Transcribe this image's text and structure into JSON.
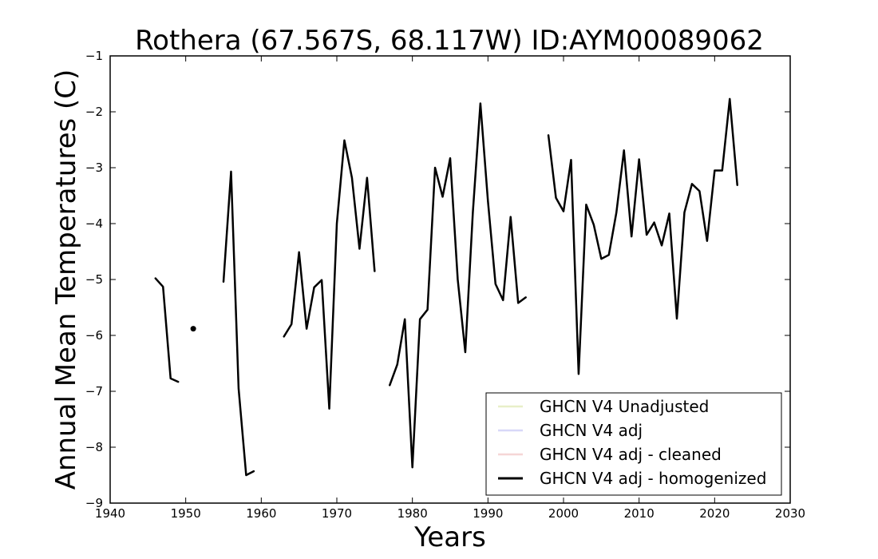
{
  "chart_data": {
    "type": "line",
    "title": "Rothera (67.567S, 68.117W) ID:AYM00089062",
    "xlabel": "Years",
    "ylabel": "Annual Mean Temperatures (C)",
    "xlim": [
      1940,
      2030
    ],
    "ylim": [
      -9,
      -1
    ],
    "xticks": [
      1940,
      1950,
      1960,
      1970,
      1980,
      1990,
      2000,
      2010,
      2020,
      2030
    ],
    "yticks": [
      -1,
      -2,
      -3,
      -4,
      -5,
      -6,
      -7,
      -8,
      -9
    ],
    "grid": false,
    "legend_position": "bottom-right",
    "series": [
      {
        "name": "GHCN V4 Unadjusted",
        "color": "#e8efc8",
        "line_style": "solid",
        "points": []
      },
      {
        "name": "GHCN V4 adj",
        "color": "#d8d8f8",
        "line_style": "solid",
        "points": []
      },
      {
        "name": "GHCN V4 adj - cleaned",
        "color": "#f6d6d6",
        "line_style": "solid",
        "points": []
      },
      {
        "name": "GHCN V4 adj - homogenized",
        "color": "#000000",
        "line_style": "solid",
        "points": [
          [
            1946,
            -4.98
          ],
          [
            1947,
            -5.13
          ],
          [
            1948,
            -6.77
          ],
          [
            1949,
            -6.83
          ],
          [
            1951,
            -5.88
          ],
          [
            1955,
            -5.04
          ],
          [
            1956,
            -3.07
          ],
          [
            1957,
            -6.95
          ],
          [
            1958,
            -8.5
          ],
          [
            1959,
            -8.43
          ],
          [
            1963,
            -6.02
          ],
          [
            1964,
            -5.8
          ],
          [
            1965,
            -4.51
          ],
          [
            1966,
            -5.88
          ],
          [
            1967,
            -5.14
          ],
          [
            1968,
            -5.01
          ],
          [
            1969,
            -7.31
          ],
          [
            1970,
            -4.0
          ],
          [
            1971,
            -2.51
          ],
          [
            1972,
            -3.18
          ],
          [
            1973,
            -4.45
          ],
          [
            1974,
            -3.18
          ],
          [
            1975,
            -4.85
          ],
          [
            1977,
            -6.89
          ],
          [
            1978,
            -6.52
          ],
          [
            1979,
            -5.71
          ],
          [
            1980,
            -8.36
          ],
          [
            1981,
            -5.71
          ],
          [
            1982,
            -5.54
          ],
          [
            1983,
            -3.0
          ],
          [
            1984,
            -3.52
          ],
          [
            1985,
            -2.83
          ],
          [
            1986,
            -5.0
          ],
          [
            1987,
            -6.3
          ],
          [
            1988,
            -3.8
          ],
          [
            1989,
            -1.85
          ],
          [
            1990,
            -3.6
          ],
          [
            1991,
            -5.08
          ],
          [
            1992,
            -5.37
          ],
          [
            1993,
            -3.88
          ],
          [
            1994,
            -5.42
          ],
          [
            1995,
            -5.32
          ],
          [
            1998,
            -2.42
          ],
          [
            1999,
            -3.54
          ],
          [
            2000,
            -3.78
          ],
          [
            2001,
            -2.86
          ],
          [
            2002,
            -6.69
          ],
          [
            2003,
            -3.66
          ],
          [
            2004,
            -4.02
          ],
          [
            2005,
            -4.63
          ],
          [
            2006,
            -4.56
          ],
          [
            2007,
            -3.8
          ],
          [
            2008,
            -2.69
          ],
          [
            2009,
            -4.23
          ],
          [
            2010,
            -2.85
          ],
          [
            2011,
            -4.2
          ],
          [
            2012,
            -3.98
          ],
          [
            2013,
            -4.39
          ],
          [
            2014,
            -3.82
          ],
          [
            2015,
            -5.7
          ],
          [
            2016,
            -3.8
          ],
          [
            2017,
            -3.29
          ],
          [
            2018,
            -3.42
          ],
          [
            2019,
            -4.31
          ],
          [
            2020,
            -3.05
          ],
          [
            2021,
            -3.05
          ],
          [
            2022,
            -1.77
          ],
          [
            2023,
            -3.31
          ]
        ]
      }
    ]
  }
}
